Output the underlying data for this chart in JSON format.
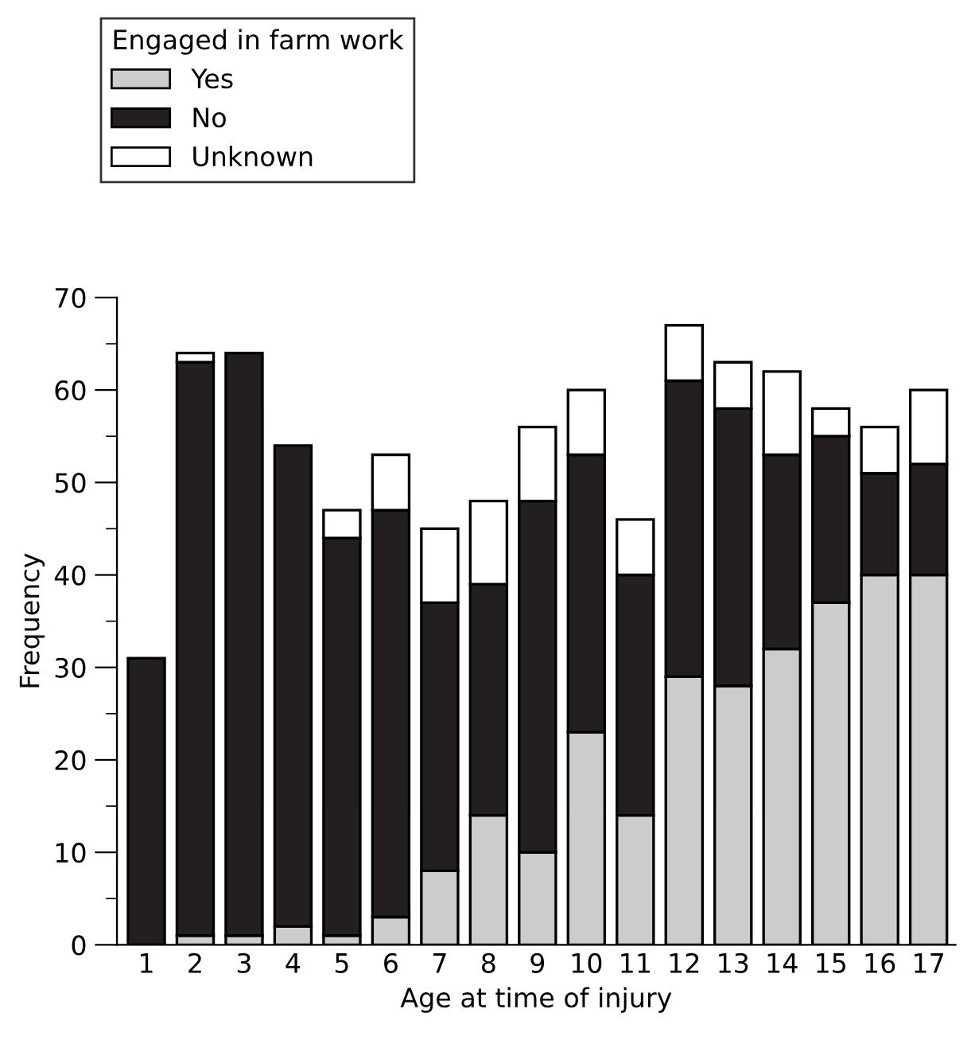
{
  "chart_data": {
    "type": "bar",
    "stacked": true,
    "xlabel": "Age at time of injury",
    "ylabel": "Frequency",
    "legend_title": "Engaged in farm work",
    "legend": "top left",
    "categories": [
      "1",
      "2",
      "3",
      "4",
      "5",
      "6",
      "7",
      "8",
      "9",
      "10",
      "11",
      "12",
      "13",
      "14",
      "15",
      "16",
      "17"
    ],
    "series": [
      {
        "name": "Yes",
        "color": "#cccccc",
        "values": [
          0,
          1,
          1,
          2,
          1,
          3,
          8,
          14,
          10,
          23,
          14,
          29,
          28,
          32,
          37,
          40,
          40
        ]
      },
      {
        "name": "No",
        "color": "#231f20",
        "values": [
          31,
          62,
          63,
          52,
          43,
          44,
          29,
          25,
          38,
          30,
          26,
          32,
          30,
          21,
          18,
          11,
          12
        ]
      },
      {
        "name": "Unknown",
        "color": "#ffffff",
        "values": [
          0,
          1,
          0,
          0,
          3,
          6,
          8,
          9,
          8,
          7,
          6,
          6,
          5,
          9,
          3,
          5,
          8
        ]
      }
    ],
    "ylim": [
      0,
      70
    ],
    "yticks": [
      0,
      {
        "value": 5,
        "label": null
      },
      10,
      {
        "value": 15,
        "label": null
      },
      20,
      {
        "value": 25,
        "label": null
      },
      30,
      {
        "value": 35,
        "label": null
      },
      40,
      {
        "value": 45,
        "label": null
      },
      50,
      {
        "value": 55,
        "label": null
      },
      60,
      {
        "value": 65,
        "label": null
      },
      70
    ],
    "grid": false
  }
}
